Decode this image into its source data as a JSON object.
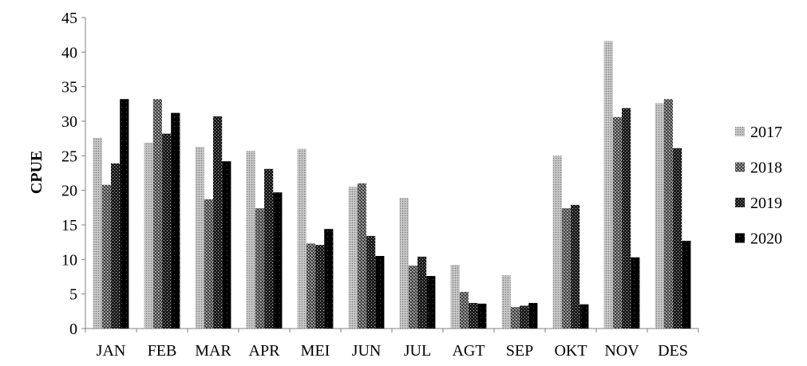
{
  "chart_data": {
    "type": "bar",
    "title": "",
    "xlabel": "",
    "ylabel": "CPUE",
    "ylim": [
      0,
      45
    ],
    "yticks": [
      0,
      5,
      10,
      15,
      20,
      25,
      30,
      35,
      40,
      45
    ],
    "grid": false,
    "legend_position": "right",
    "categories": [
      "JAN",
      "FEB",
      "MAR",
      "APR",
      "MEI",
      "JUN",
      "JUL",
      "AGT",
      "SEP",
      "OKT",
      "NOV",
      "DES"
    ],
    "series": [
      {
        "name": "2017",
        "values": [
          27.6,
          26.9,
          26.3,
          25.7,
          26.0,
          20.5,
          18.9,
          9.2,
          7.7,
          25.0,
          41.6,
          32.6
        ]
      },
      {
        "name": "2018",
        "values": [
          20.8,
          33.2,
          18.7,
          17.4,
          12.3,
          21.0,
          9.1,
          5.3,
          3.1,
          17.4,
          30.6,
          33.2
        ]
      },
      {
        "name": "2019",
        "values": [
          23.9,
          28.2,
          30.7,
          23.1,
          12.1,
          13.4,
          10.4,
          3.7,
          3.3,
          17.9,
          31.9,
          26.1
        ]
      },
      {
        "name": "2020",
        "values": [
          33.2,
          31.2,
          24.2,
          19.7,
          14.4,
          10.5,
          7.6,
          3.6,
          3.7,
          3.5,
          10.3,
          12.7
        ]
      }
    ],
    "series_patterns": [
      "light-gray-dots",
      "gray-checker",
      "dark-checker",
      "solid-black"
    ]
  }
}
